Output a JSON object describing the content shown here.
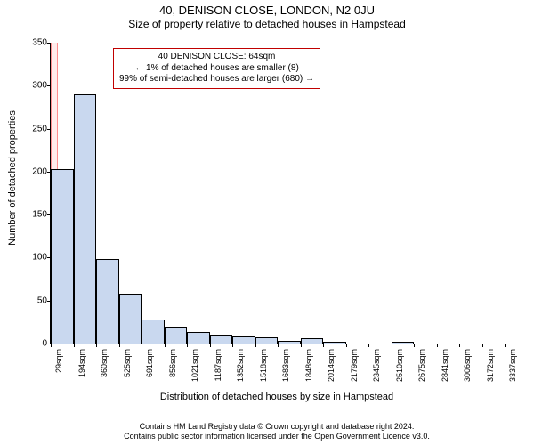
{
  "title": "40, DENISON CLOSE, LONDON, N2 0JU",
  "subtitle": "Size of property relative to detached houses in Hampstead",
  "ylabel": "Number of detached properties",
  "xlabel": "Distribution of detached houses by size in Hampstead",
  "chart": {
    "type": "histogram",
    "ylim": [
      0,
      350
    ],
    "ytick_step": 50,
    "yticks": [
      0,
      50,
      100,
      150,
      200,
      250,
      300,
      350
    ],
    "x_categories": [
      "29sqm",
      "194sqm",
      "360sqm",
      "525sqm",
      "691sqm",
      "856sqm",
      "1021sqm",
      "1187sqm",
      "1352sqm",
      "1518sqm",
      "1683sqm",
      "1848sqm",
      "2014sqm",
      "2179sqm",
      "2345sqm",
      "2510sqm",
      "2675sqm",
      "2841sqm",
      "3006sqm",
      "3172sqm",
      "3337sqm"
    ],
    "bar_values": [
      203,
      290,
      98,
      58,
      28,
      20,
      13,
      10,
      8,
      7,
      3,
      6,
      2,
      0,
      0,
      2,
      0,
      0,
      0,
      0
    ],
    "bar_fill": "#c9d8ef",
    "bar_stroke": "#000000",
    "background": "#ffffff",
    "highlight": {
      "index_from": 0,
      "index_to": 1,
      "fraction": 0.22,
      "fill": "rgba(255,0,0,0.08)",
      "border": "rgba(255,0,0,0.4)"
    }
  },
  "annotation": {
    "line1": "40 DENISON CLOSE: 64sqm",
    "line2": "← 1% of detached houses are smaller (8)",
    "line3": "99% of semi-detached houses are larger (680) →",
    "border_color": "#c00000",
    "font_size": 10
  },
  "footer": {
    "line1": "Contains HM Land Registry data © Crown copyright and database right 2024.",
    "line2": "Contains public sector information licensed under the Open Government Licence v3.0."
  },
  "typography": {
    "title_fontsize": 13,
    "subtitle_fontsize": 12,
    "axis_label_fontsize": 11,
    "tick_fontsize": 10,
    "xtick_fontsize": 9,
    "footer_fontsize": 9
  }
}
